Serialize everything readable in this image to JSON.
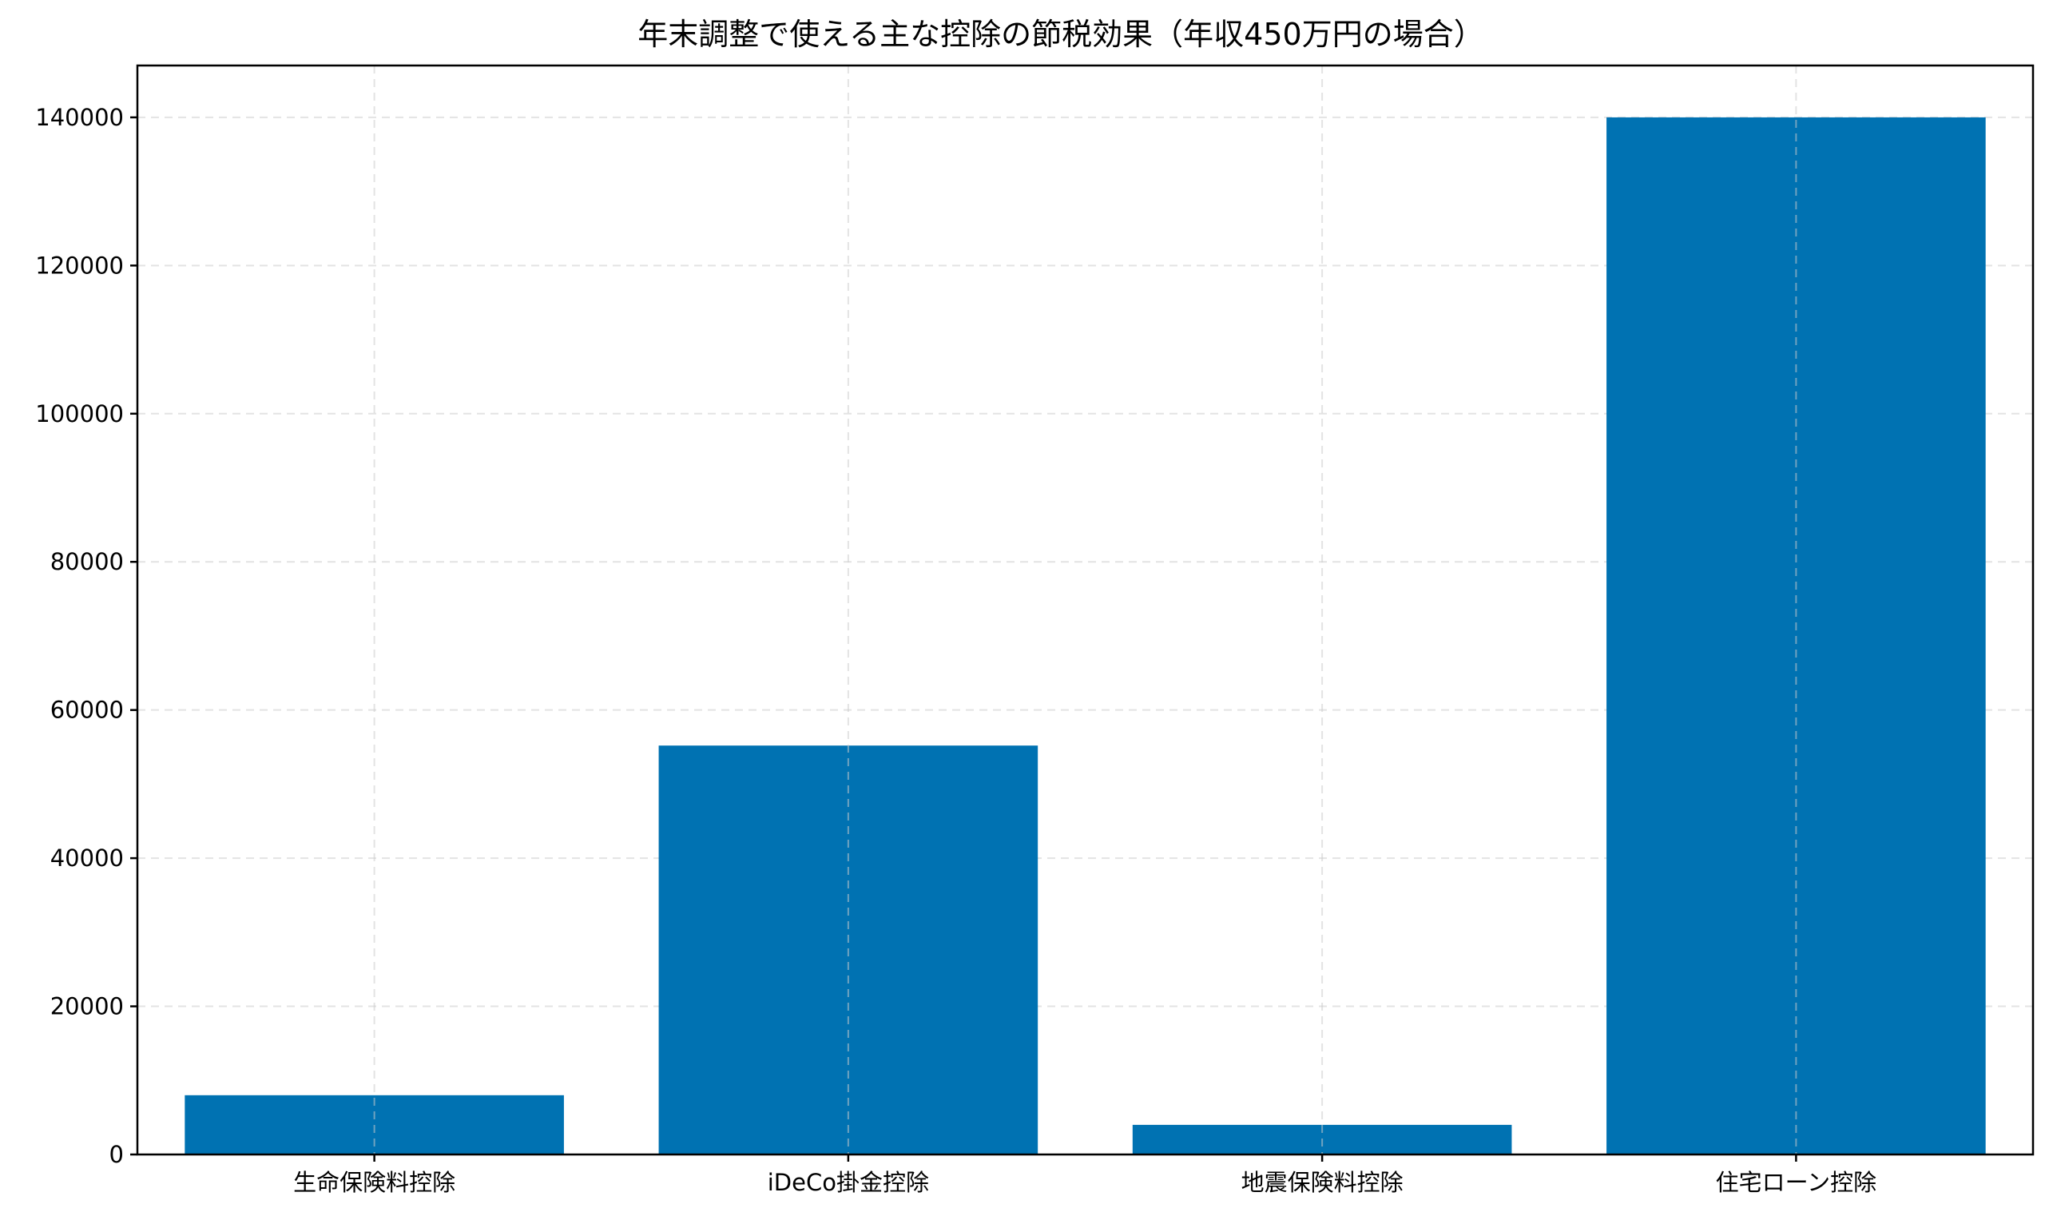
{
  "chart_data": {
    "type": "bar",
    "title": "年末調整で使える主な控除の節税効果（年収450万円の場合）",
    "xlabel": "",
    "ylabel": "",
    "categories": [
      "生命保険料控除",
      "iDeCo掛金控除",
      "地震保険料控除",
      "住宅ローン控除"
    ],
    "values": [
      8000,
      55200,
      4000,
      140000
    ],
    "ylim": [
      0,
      147000
    ],
    "yticks": [
      0,
      20000,
      40000,
      60000,
      80000,
      100000,
      120000,
      140000
    ],
    "ytick_labels": [
      "0",
      "20000",
      "40000",
      "60000",
      "80000",
      "100000",
      "120000",
      "140000"
    ],
    "grid": true,
    "bar_color": "#0072b2"
  }
}
